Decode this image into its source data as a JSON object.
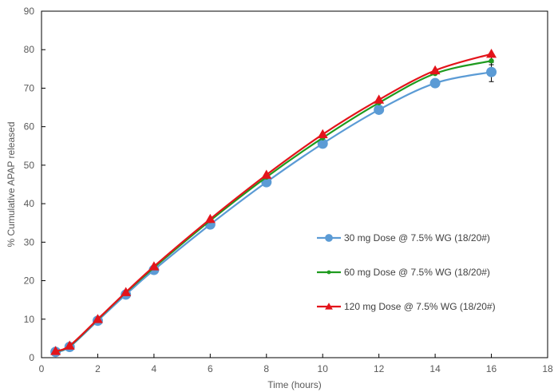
{
  "chart_data": {
    "type": "line",
    "xlabel": "Time (hours)",
    "ylabel": "% Cumulative APAP released",
    "xlim": [
      0,
      18
    ],
    "ylim": [
      0,
      90
    ],
    "xticks": [
      0,
      2,
      4,
      6,
      8,
      10,
      12,
      14,
      16,
      18
    ],
    "yticks": [
      0,
      10,
      20,
      30,
      40,
      50,
      60,
      70,
      80,
      90
    ],
    "grid": false,
    "legend_position": "right",
    "x": [
      0.5,
      1,
      2,
      3,
      4,
      6,
      8,
      10,
      12,
      14,
      16
    ],
    "series": [
      {
        "name": "30 mg Dose @ 7.5% WG (18/20#)",
        "color": "#5b9bd5",
        "marker": "circle",
        "values": [
          1.5,
          2.8,
          9.6,
          16.4,
          22.8,
          34.6,
          45.6,
          55.6,
          64.4,
          71.3,
          74.2
        ],
        "error": [
          0,
          0,
          0,
          0,
          0,
          0,
          0,
          0,
          0,
          0,
          2.5
        ]
      },
      {
        "name": "60 mg Dose @ 7.5% WG (18/20#)",
        "color": "#1f9b1f",
        "marker": "dot",
        "values": [
          1.6,
          3.0,
          9.9,
          16.9,
          23.4,
          35.6,
          46.9,
          57.1,
          66.2,
          73.8,
          77.1
        ],
        "error": [
          0,
          0,
          0,
          0,
          0,
          0,
          0,
          0,
          0,
          0,
          1.0
        ]
      },
      {
        "name": "120 mg Dose @ 7.5% WG (18/20#)",
        "color": "#e3141b",
        "marker": "triangle",
        "values": [
          1.7,
          3.1,
          10.0,
          17.0,
          23.7,
          36.0,
          47.5,
          58.0,
          67.0,
          74.6,
          78.9
        ],
        "error": [
          0,
          0,
          0,
          0,
          0,
          0,
          0,
          0,
          0,
          0,
          0
        ]
      }
    ]
  }
}
